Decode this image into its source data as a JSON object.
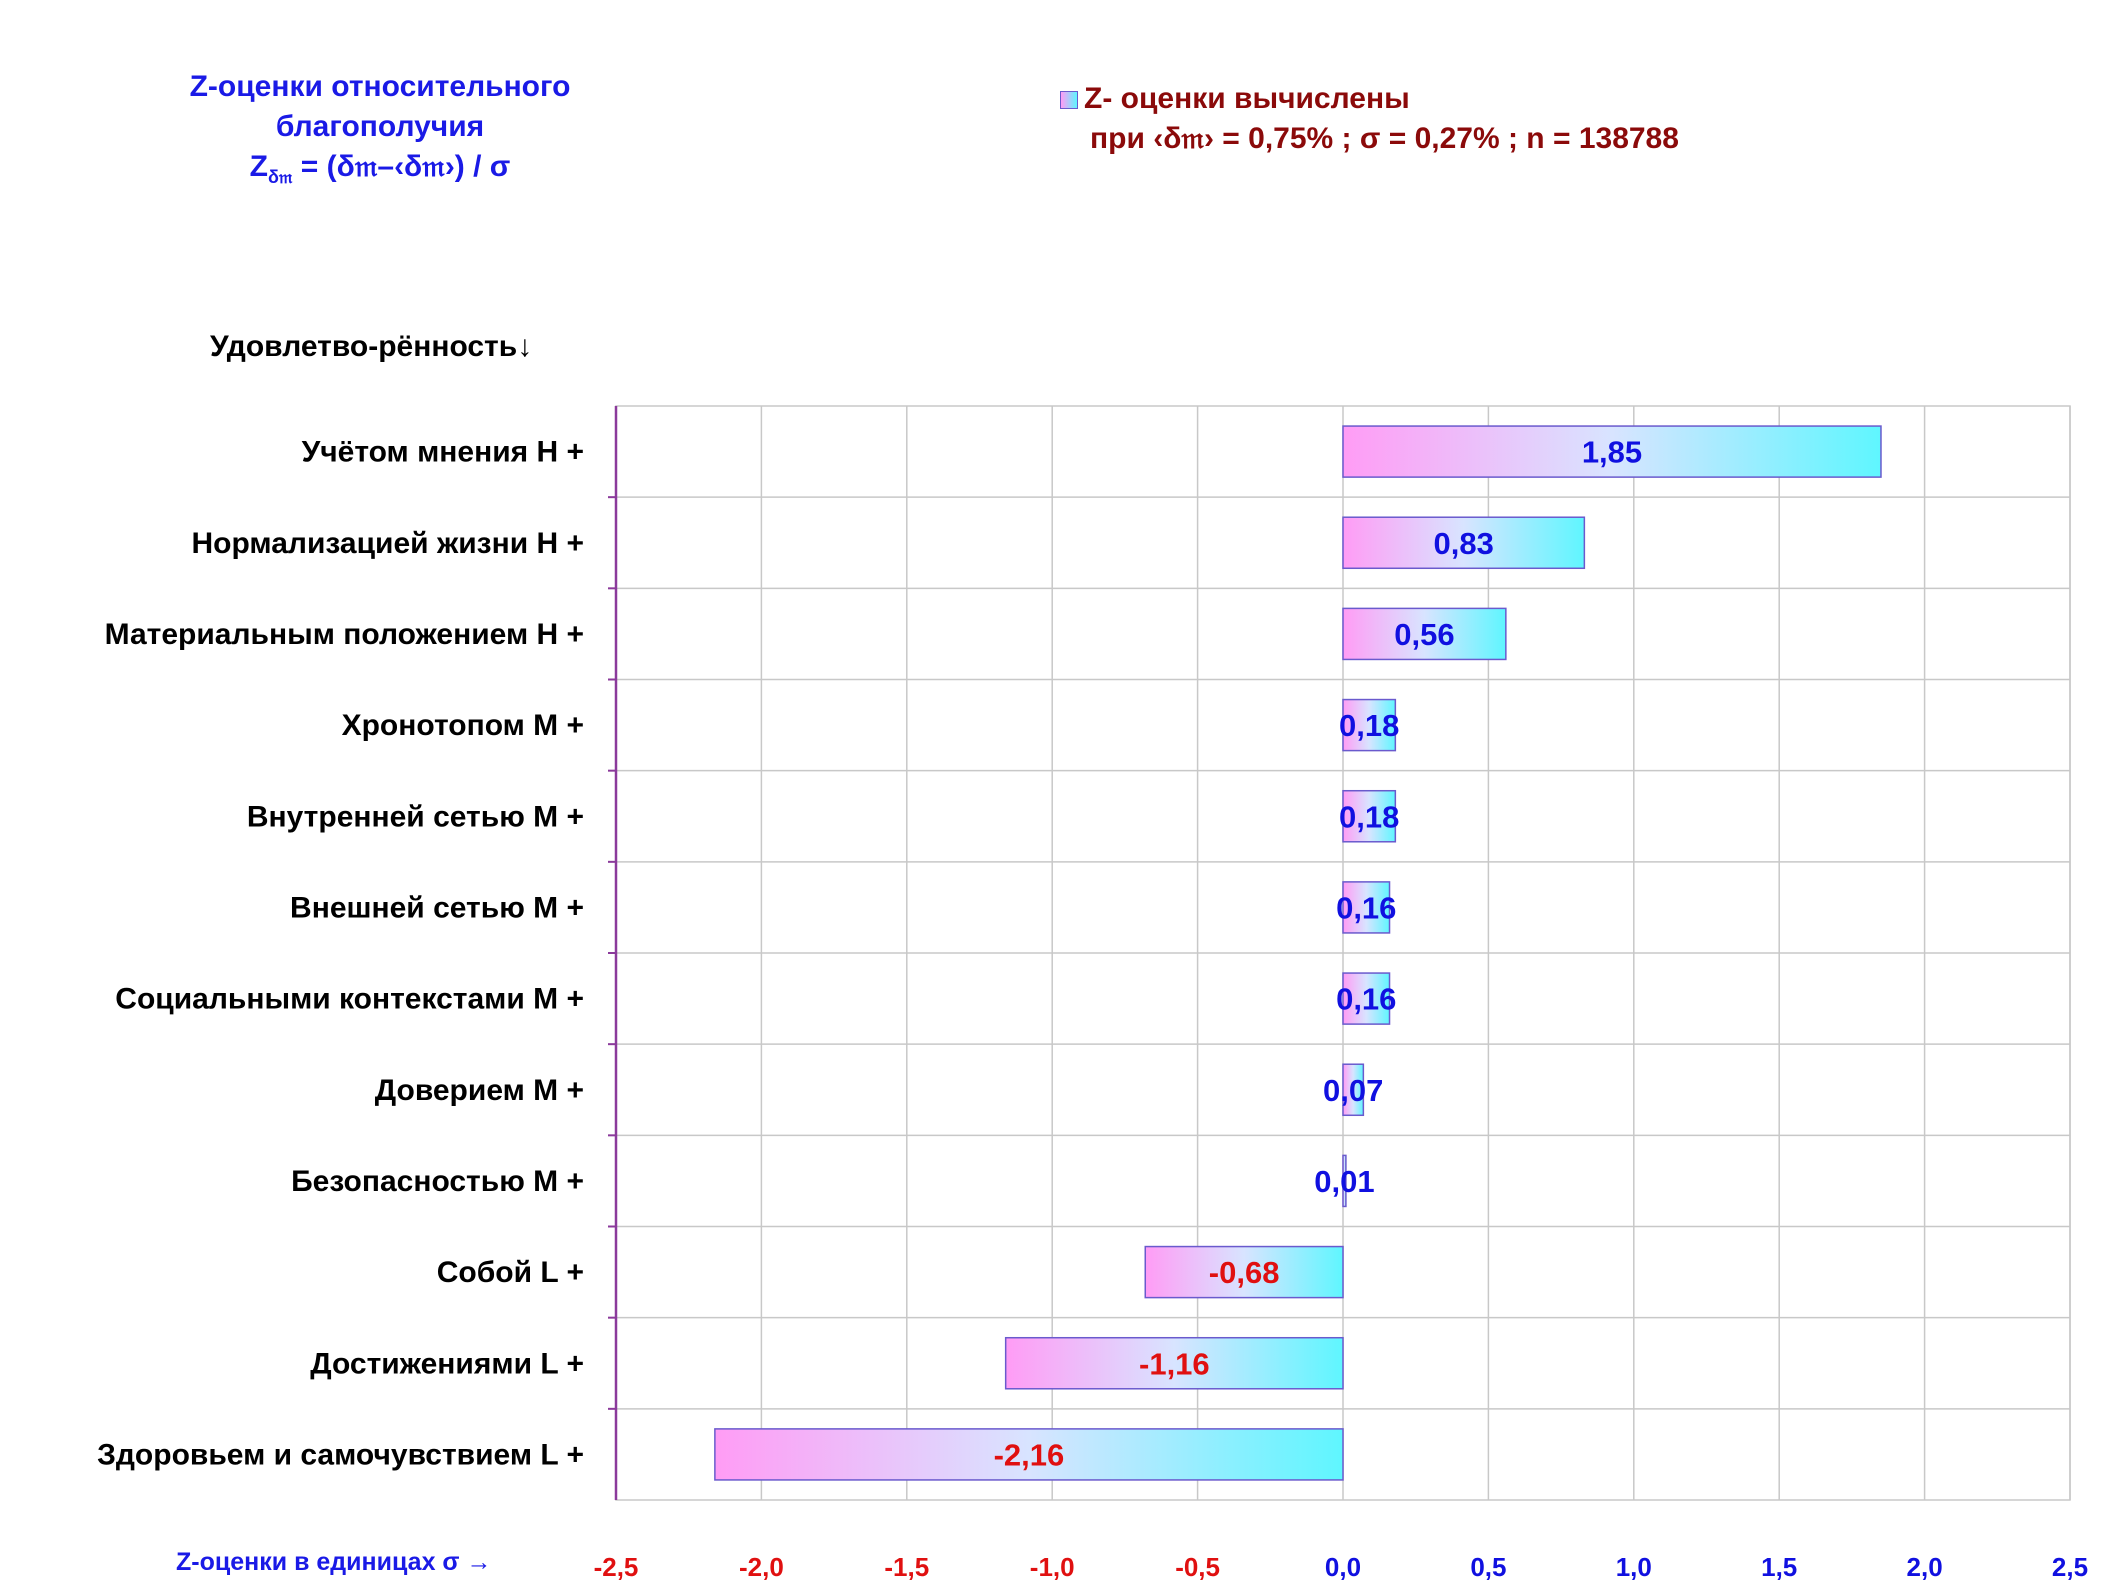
{
  "header": {
    "title_line1": "Z-оценки  относительного",
    "title_line2": "благополучия",
    "formula_main": "Z",
    "formula_sub": "δ𝔪",
    "formula_rest": " = (δ𝔪–‹δ𝔪›)  / σ"
  },
  "legend": {
    "label": "Z- оценки вычислены",
    "note": "при ‹δ𝔪› = 0,75% ; σ = 0,27% ; n = 138788"
  },
  "y_header": "Удовлетво-рённость↓",
  "x_caption": "Z-оценки в единицах σ →",
  "colors": {
    "bar_left": "#ff9cf5",
    "bar_mid": "#d8e4ff",
    "bar_right": "#5ff6ff",
    "bar_border": "#6a5acd",
    "positive_label": "#1010e0",
    "negative_label": "#e01010",
    "grid": "#c8c8c8",
    "axis": "#8b3a9b"
  },
  "chart_data": {
    "type": "bar",
    "orientation": "horizontal",
    "categories": [
      "Учётом мнения  H +",
      "Нормализацией жизни  H +",
      "Материальным положением  H +",
      "Хронотопом  M +",
      "Внутренней сетью  M +",
      "Внешней сетью  M +",
      "Социальными контекстами  M +",
      "Доверием  M +",
      "Безопасностью  M +",
      "Собой  L +",
      "Достижениями  L +",
      "Здоровьем и самочувствием  L +"
    ],
    "values": [
      1.85,
      0.83,
      0.56,
      0.18,
      0.18,
      0.16,
      0.16,
      0.07,
      0.01,
      -0.68,
      -1.16,
      -2.16
    ],
    "value_labels": [
      "1,85",
      "0,83",
      "0,56",
      "0,18",
      "0,18",
      "0,16",
      "0,16",
      "0,07",
      "0,01",
      "-0,68",
      "-1,16",
      "-2,16"
    ],
    "xlim": [
      -2.5,
      2.5
    ],
    "x_ticks": [
      "-2,5",
      "-2,0",
      "-1,5",
      "-1,0",
      "-0,5",
      "0,0",
      "0,5",
      "1,0",
      "1,5",
      "2,0",
      "2,5"
    ],
    "x_tick_values": [
      -2.5,
      -2.0,
      -1.5,
      -1.0,
      -0.5,
      0.0,
      0.5,
      1.0,
      1.5,
      2.0,
      2.5
    ],
    "grid": true
  }
}
